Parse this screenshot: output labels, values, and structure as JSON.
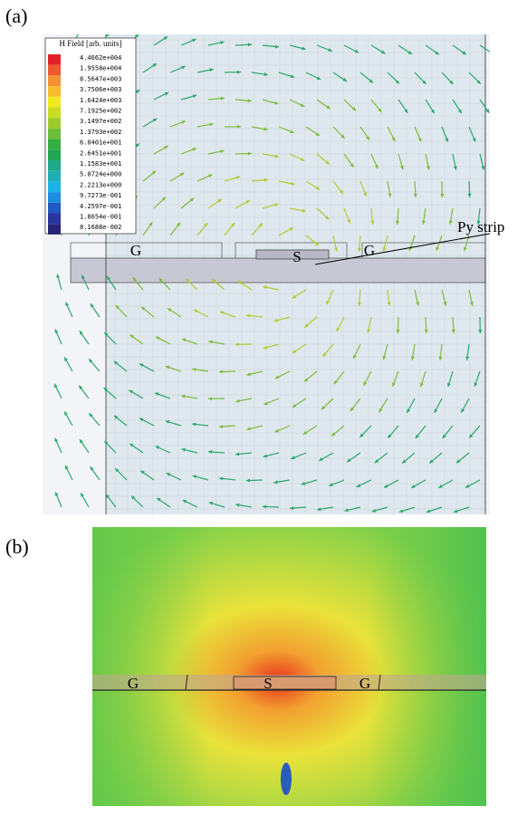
{
  "panel_a": {
    "label": "(a)",
    "legend": {
      "title": "H Field [arb. units]",
      "entries": [
        {
          "label": "4.4662e+004",
          "color": "#e3202a"
        },
        {
          "label": "1.9558e+004",
          "color": "#ee5a2e"
        },
        {
          "label": "8.5647e+003",
          "color": "#f39232"
        },
        {
          "label": "3.7506e+003",
          "color": "#f6bd2c"
        },
        {
          "label": "1.6424e+003",
          "color": "#f2e81e"
        },
        {
          "label": "7.1925e+002",
          "color": "#c9dc22"
        },
        {
          "label": "3.1497e+002",
          "color": "#9ccc2c"
        },
        {
          "label": "1.3793e+002",
          "color": "#6cbd3a"
        },
        {
          "label": "6.0401e+001",
          "color": "#36ae44"
        },
        {
          "label": "2.6451e+001",
          "color": "#22a650"
        },
        {
          "label": "1.1583e+001",
          "color": "#1ea88c"
        },
        {
          "label": "5.0724e+000",
          "color": "#1cb0b4"
        },
        {
          "label": "2.2213e+000",
          "color": "#1ab4e4"
        },
        {
          "label": "9.7273e-001",
          "color": "#1a8ee0"
        },
        {
          "label": "4.2597e-001",
          "color": "#2058c4"
        },
        {
          "label": "1.8654e-001",
          "color": "#2a36a0"
        },
        {
          "label": "8.1688e-002",
          "color": "#2a2478"
        }
      ]
    },
    "annotation": "Py strip",
    "conductors": [
      "G",
      "S",
      "G"
    ]
  },
  "panel_b": {
    "label": "(b)",
    "conductors": [
      "G",
      "S",
      "G"
    ]
  }
}
